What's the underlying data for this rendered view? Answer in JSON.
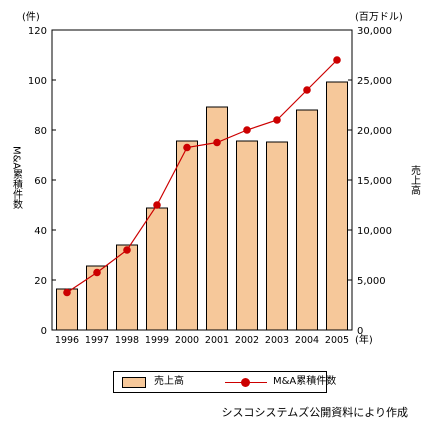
{
  "chart_data": {
    "type": "bar",
    "categories": [
      "1996",
      "1997",
      "1998",
      "1999",
      "2000",
      "2001",
      "2002",
      "2003",
      "2004",
      "2005"
    ],
    "x_unit": "(年)",
    "series": [
      {
        "name": "売上高",
        "kind": "bar",
        "axis": "right",
        "values": [
          4100,
          6400,
          8500,
          12200,
          18900,
          22300,
          18900,
          18800,
          22000,
          24800
        ],
        "color": "#f6c89a"
      },
      {
        "name": "M&A累積件数",
        "kind": "line",
        "axis": "left",
        "values": [
          15,
          23,
          32,
          50,
          73,
          75,
          80,
          84,
          96,
          108
        ],
        "color": "#cc0000"
      }
    ],
    "left_axis": {
      "label": "M&A累積件数",
      "unit": "(件)",
      "ylim": [
        0,
        120
      ],
      "ticks": [
        "0",
        "20",
        "40",
        "60",
        "80",
        "100",
        "120"
      ]
    },
    "right_axis": {
      "label": "売上高",
      "unit": "(百万ドル)",
      "ylim": [
        0,
        30000
      ],
      "ticks": [
        "0",
        "5,000",
        "10,000",
        "15,000",
        "20,000",
        "25,000",
        "30,000"
      ]
    },
    "grid": false,
    "legend_position": "bottom"
  },
  "source_note": "シスコシステムズ公開資料により作成"
}
